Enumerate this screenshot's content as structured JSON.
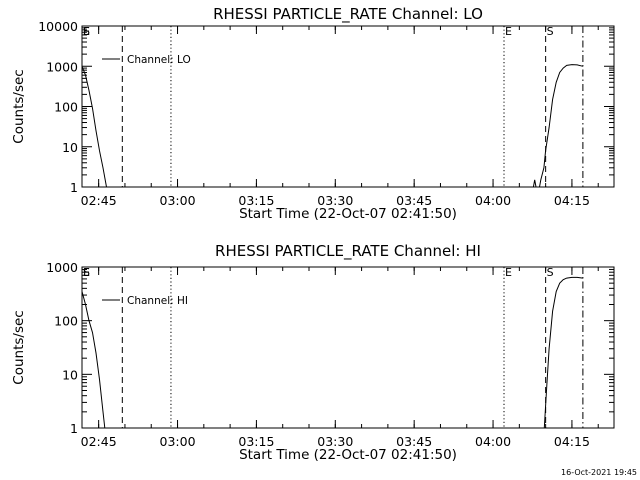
{
  "stamp": "16-Oct-2021 19:45",
  "chart_data": [
    {
      "type": "line",
      "title": "RHESSI PARTICLE_RATE Channel: LO",
      "xlabel": "Start Time (22-Oct-07 02:41:50)",
      "ylabel": "Counts/sec",
      "yscale": "log",
      "xlim": [
        "02:41:50",
        "04:23:00"
      ],
      "ylim": [
        1,
        10000
      ],
      "xticks": [
        "02:45",
        "03:00",
        "03:15",
        "03:30",
        "03:45",
        "04:00",
        "04:15"
      ],
      "yticks": [
        {
          "value": 1,
          "label": "1"
        },
        {
          "value": 10,
          "label": "10"
        },
        {
          "value": 100,
          "label": "100"
        },
        {
          "value": 1000,
          "label": "1000"
        },
        {
          "value": 10000,
          "label": "10000"
        }
      ],
      "legend": {
        "label": "Channel: LO",
        "position": "top-left"
      },
      "markers": [
        {
          "label": "E",
          "time": "02:41:50",
          "style": "dotted"
        },
        {
          "label": "S",
          "time": "02:41:50",
          "style": "dashed"
        },
        {
          "label": "",
          "time": "02:49:30",
          "style": "dashed"
        },
        {
          "label": "",
          "time": "02:58:45",
          "style": "dotted"
        },
        {
          "label": "E",
          "time": "04:02:05",
          "style": "dotted"
        },
        {
          "label": "S",
          "time": "04:10:00",
          "style": "dashed"
        },
        {
          "label": "",
          "time": "04:17:05",
          "style": "dashdot"
        }
      ],
      "series": [
        {
          "name": "Channel: LO",
          "segments": [
            [
              {
                "x": "02:41:50",
                "y": 1000
              },
              {
                "x": "02:42:30",
                "y": 600
              },
              {
                "x": "02:43:10",
                "y": 250
              },
              {
                "x": "02:43:50",
                "y": 90
              },
              {
                "x": "02:44:30",
                "y": 25
              },
              {
                "x": "02:45:10",
                "y": 8
              },
              {
                "x": "02:45:50",
                "y": 3
              },
              {
                "x": "02:46:30",
                "y": 1
              }
            ],
            [
              {
                "x": "04:07:40",
                "y": 1
              },
              {
                "x": "04:07:55",
                "y": 1.5
              },
              {
                "x": "04:08:10",
                "y": 1
              },
              {
                "x": "04:08:50",
                "y": 1
              },
              {
                "x": "04:09:05",
                "y": 1.5
              },
              {
                "x": "04:09:40",
                "y": 3
              },
              {
                "x": "04:10:00",
                "y": 8
              },
              {
                "x": "04:10:40",
                "y": 30
              },
              {
                "x": "04:11:20",
                "y": 150
              },
              {
                "x": "04:12:00",
                "y": 400
              },
              {
                "x": "04:12:40",
                "y": 700
              },
              {
                "x": "04:13:20",
                "y": 900
              },
              {
                "x": "04:14:00",
                "y": 1050
              },
              {
                "x": "04:15:00",
                "y": 1100
              },
              {
                "x": "04:16:00",
                "y": 1080
              },
              {
                "x": "04:17:05",
                "y": 1000
              }
            ]
          ]
        }
      ]
    },
    {
      "type": "line",
      "title": "RHESSI PARTICLE_RATE Channel: HI",
      "xlabel": "Start Time (22-Oct-07 02:41:50)",
      "ylabel": "Counts/sec",
      "yscale": "log",
      "xlim": [
        "02:41:50",
        "04:23:00"
      ],
      "ylim": [
        1,
        1000
      ],
      "xticks": [
        "02:45",
        "03:00",
        "03:15",
        "03:30",
        "03:45",
        "04:00",
        "04:15"
      ],
      "yticks": [
        {
          "value": 1,
          "label": "1"
        },
        {
          "value": 10,
          "label": "10"
        },
        {
          "value": 100,
          "label": "100"
        },
        {
          "value": 1000,
          "label": "1000"
        }
      ],
      "legend": {
        "label": "Channel: HI",
        "position": "top-left"
      },
      "markers": [
        {
          "label": "E",
          "time": "02:41:50",
          "style": "dotted"
        },
        {
          "label": "S",
          "time": "02:41:50",
          "style": "dashed"
        },
        {
          "label": "",
          "time": "02:49:30",
          "style": "dashed"
        },
        {
          "label": "",
          "time": "02:58:45",
          "style": "dotted"
        },
        {
          "label": "E",
          "time": "04:02:05",
          "style": "dotted"
        },
        {
          "label": "S",
          "time": "04:10:00",
          "style": "dashed"
        },
        {
          "label": "",
          "time": "04:17:05",
          "style": "dashdot"
        }
      ],
      "series": [
        {
          "name": "Channel: HI",
          "segments": [
            [
              {
                "x": "02:41:50",
                "y": 350
              },
              {
                "x": "02:42:30",
                "y": 200
              },
              {
                "x": "02:43:10",
                "y": 100
              },
              {
                "x": "02:43:50",
                "y": 60
              },
              {
                "x": "02:44:30",
                "y": 25
              },
              {
                "x": "02:45:10",
                "y": 8
              },
              {
                "x": "02:45:50",
                "y": 2
              },
              {
                "x": "02:46:10",
                "y": 1
              }
            ],
            [
              {
                "x": "04:09:45",
                "y": 1
              },
              {
                "x": "04:10:10",
                "y": 5
              },
              {
                "x": "04:10:40",
                "y": 30
              },
              {
                "x": "04:11:20",
                "y": 150
              },
              {
                "x": "04:12:00",
                "y": 350
              },
              {
                "x": "04:12:40",
                "y": 500
              },
              {
                "x": "04:13:20",
                "y": 580
              },
              {
                "x": "04:14:00",
                "y": 620
              },
              {
                "x": "04:15:00",
                "y": 640
              },
              {
                "x": "04:16:00",
                "y": 640
              },
              {
                "x": "04:17:05",
                "y": 620
              }
            ]
          ]
        }
      ]
    }
  ]
}
